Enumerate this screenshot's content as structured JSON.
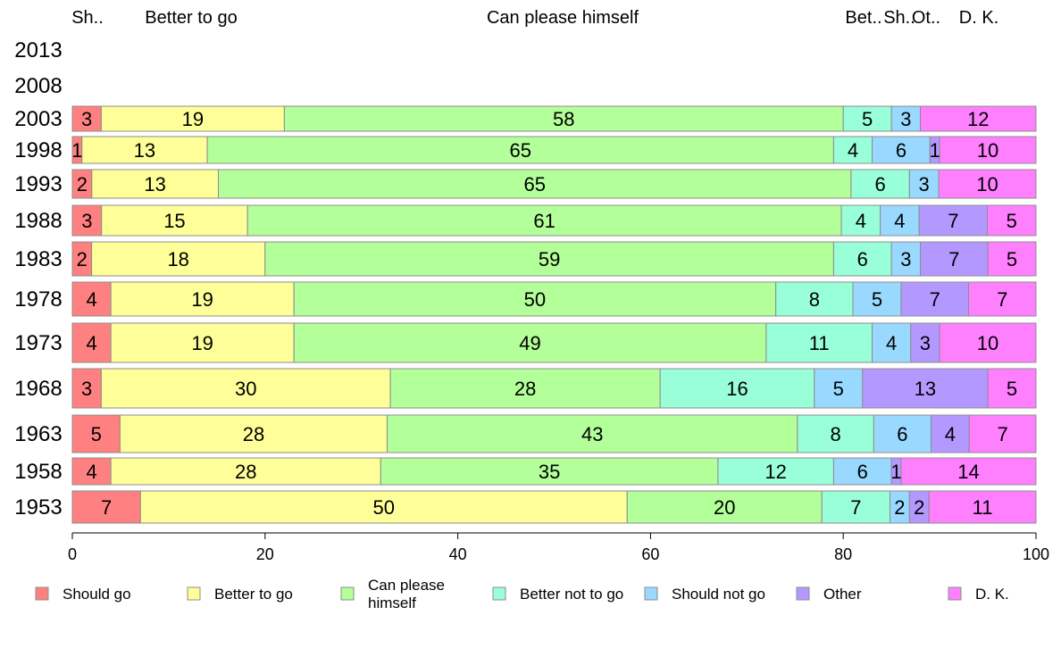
{
  "chart_data": {
    "type": "bar",
    "orientation": "horizontal",
    "stacked": true,
    "categories": [
      "2013",
      "2008",
      "2003",
      "1998",
      "1993",
      "1988",
      "1983",
      "1978",
      "1973",
      "1968",
      "1963",
      "1958",
      "1953"
    ],
    "series": [
      {
        "name": "Should go",
        "color": "#ff8080",
        "values": [
          null,
          null,
          3,
          1,
          2,
          3,
          2,
          4,
          4,
          3,
          5,
          4,
          7
        ]
      },
      {
        "name": "Better to go",
        "color": "#ffff99",
        "values": [
          null,
          null,
          19,
          13,
          13,
          15,
          18,
          19,
          19,
          30,
          28,
          28,
          50
        ]
      },
      {
        "name": "Can please himself",
        "color": "#b3ff99",
        "values": [
          null,
          null,
          58,
          65,
          65,
          61,
          59,
          50,
          49,
          28,
          43,
          35,
          20
        ]
      },
      {
        "name": "Better not to go",
        "color": "#99ffd9",
        "values": [
          null,
          null,
          5,
          4,
          6,
          4,
          6,
          8,
          11,
          16,
          8,
          12,
          7
        ]
      },
      {
        "name": "Should not go",
        "color": "#99d9ff",
        "values": [
          null,
          null,
          3,
          6,
          3,
          4,
          3,
          5,
          4,
          5,
          6,
          6,
          2
        ]
      },
      {
        "name": "Other",
        "color": "#b399ff",
        "values": [
          null,
          null,
          0,
          1,
          0,
          7,
          7,
          7,
          3,
          13,
          4,
          1,
          2
        ]
      },
      {
        "name": "D. K.",
        "color": "#ff80ff",
        "values": [
          null,
          null,
          12,
          10,
          10,
          5,
          5,
          7,
          10,
          5,
          7,
          14,
          11
        ]
      }
    ],
    "column_headers": [
      "Sh..",
      "Better to go",
      "Can please himself",
      "Bet..",
      "Sh..",
      "Ot..",
      "D. K."
    ],
    "legend_labels": [
      "Should go",
      "Better to go",
      "Can please\nhimself",
      "Better not to go",
      "Should not go",
      "Other",
      "D. K."
    ],
    "xlim": [
      0,
      100
    ],
    "x_ticks": [
      0,
      20,
      40,
      60,
      80,
      100
    ],
    "legend_position": "bottom",
    "grid": false
  }
}
